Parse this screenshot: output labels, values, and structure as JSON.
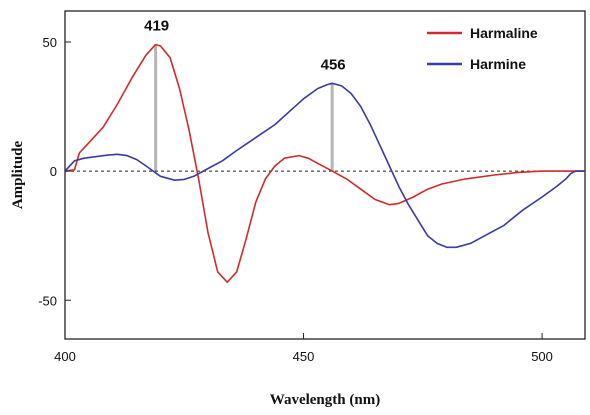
{
  "chart_data": {
    "type": "line",
    "xlabel": "Wavelength (nm)",
    "ylabel": "Amplitude",
    "xlim": [
      400,
      509
    ],
    "ylim": [
      -65,
      62
    ],
    "x_ticks": [
      400,
      450,
      500
    ],
    "y_ticks": [
      50,
      0,
      -50
    ],
    "x_tick_labels": [
      "400",
      "450",
      "500"
    ],
    "y_tick_labels": [
      "50",
      "0",
      "-50"
    ],
    "zero_reference_line": true,
    "grid": false,
    "legend_position": "top-right",
    "series": [
      {
        "name": "Harmaline",
        "color": "#d42a2a",
        "points": [
          [
            400,
            0
          ],
          [
            402,
            0.5
          ],
          [
            403,
            7
          ],
          [
            405,
            11
          ],
          [
            408,
            17
          ],
          [
            411,
            26
          ],
          [
            414,
            36
          ],
          [
            417,
            45
          ],
          [
            419,
            49
          ],
          [
            420,
            48.5
          ],
          [
            422,
            44
          ],
          [
            424,
            32
          ],
          [
            426,
            16
          ],
          [
            428,
            -3
          ],
          [
            430,
            -24
          ],
          [
            432,
            -39
          ],
          [
            434,
            -43
          ],
          [
            436,
            -39
          ],
          [
            438,
            -26
          ],
          [
            440,
            -12
          ],
          [
            442,
            -3
          ],
          [
            444,
            2
          ],
          [
            446,
            5
          ],
          [
            449,
            6
          ],
          [
            451,
            5
          ],
          [
            453,
            3
          ],
          [
            456,
            0
          ],
          [
            459,
            -3
          ],
          [
            462,
            -7
          ],
          [
            465,
            -11
          ],
          [
            468,
            -13
          ],
          [
            470,
            -12.5
          ],
          [
            473,
            -10
          ],
          [
            476,
            -7
          ],
          [
            479,
            -5
          ],
          [
            484,
            -3
          ],
          [
            490,
            -1.5
          ],
          [
            495,
            -0.5
          ],
          [
            500,
            0
          ],
          [
            506,
            0
          ],
          [
            509,
            0
          ]
        ]
      },
      {
        "name": "Harmine",
        "color": "#3a3aa8",
        "points": [
          [
            400,
            0
          ],
          [
            402,
            4
          ],
          [
            404,
            5
          ],
          [
            406,
            5.5
          ],
          [
            409,
            6.2
          ],
          [
            411,
            6.5
          ],
          [
            413,
            6
          ],
          [
            415,
            4.5
          ],
          [
            417,
            2
          ],
          [
            420,
            -2
          ],
          [
            423,
            -3.5
          ],
          [
            425,
            -3.2
          ],
          [
            427,
            -2
          ],
          [
            430,
            1
          ],
          [
            433,
            4
          ],
          [
            436,
            8
          ],
          [
            440,
            13
          ],
          [
            444,
            18
          ],
          [
            447,
            23
          ],
          [
            450,
            28
          ],
          [
            453,
            32
          ],
          [
            455,
            33.5
          ],
          [
            456,
            34
          ],
          [
            458,
            33
          ],
          [
            460,
            30
          ],
          [
            462,
            25
          ],
          [
            464,
            18
          ],
          [
            466,
            10
          ],
          [
            468,
            2
          ],
          [
            470,
            -6
          ],
          [
            472,
            -13
          ],
          [
            474,
            -19
          ],
          [
            476,
            -25
          ],
          [
            478,
            -28
          ],
          [
            480,
            -29.5
          ],
          [
            482,
            -29.5
          ],
          [
            485,
            -28
          ],
          [
            488,
            -25
          ],
          [
            492,
            -21
          ],
          [
            496,
            -15
          ],
          [
            500,
            -10
          ],
          [
            503,
            -6
          ],
          [
            505,
            -3
          ],
          [
            506,
            -1
          ],
          [
            507,
            0
          ],
          [
            509,
            0
          ]
        ]
      }
    ],
    "annotations": [
      {
        "x": 419,
        "text": "419",
        "y_top": 49,
        "y_bottom": 0
      },
      {
        "x": 456,
        "text": "456",
        "y_top": 34,
        "y_bottom": 0
      }
    ]
  }
}
